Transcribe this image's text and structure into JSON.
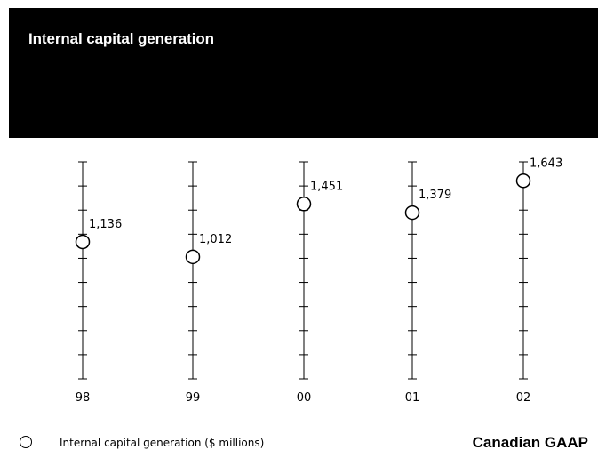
{
  "header": {
    "title": "Internal capital generation"
  },
  "legend": {
    "series_label": "Internal capital generation ($ millions)",
    "basis_note": "Canadian GAAP"
  },
  "chart_data": {
    "type": "scatter",
    "title": "Internal capital generation",
    "categories": [
      "98",
      "99",
      "00",
      "01",
      "02"
    ],
    "series": [
      {
        "name": "Internal capital generation ($ millions)",
        "values": [
          1136,
          1012,
          1451,
          1379,
          1643
        ],
        "labels": [
          "1,136",
          "1,012",
          "1,451",
          "1,379",
          "1,643"
        ]
      }
    ],
    "ylim": [
      0,
      1800
    ],
    "y_tick_step": 200,
    "marker": "open-circle",
    "grid": false,
    "legend_position": "bottom-left"
  }
}
